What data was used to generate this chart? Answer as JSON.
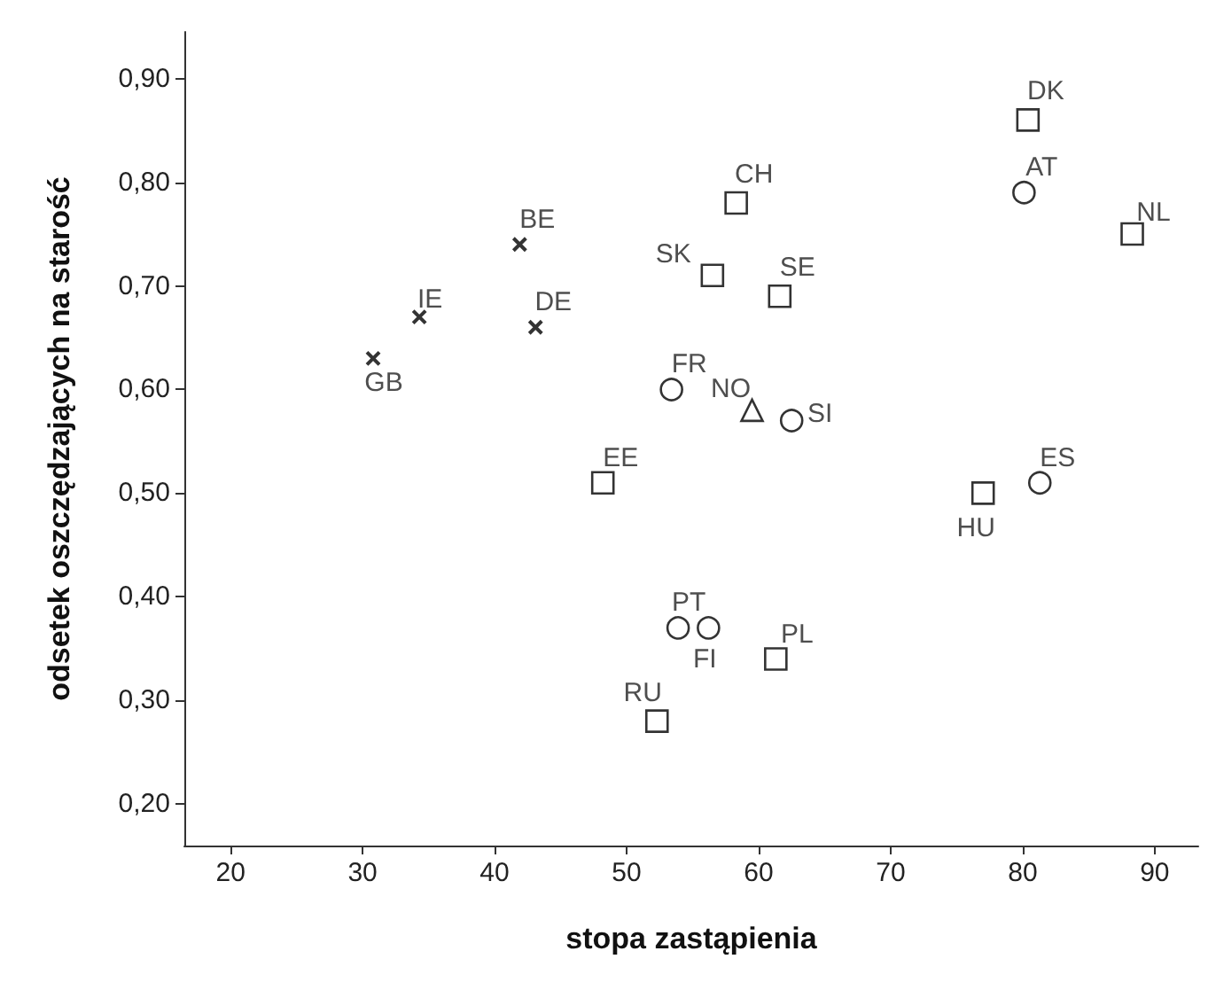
{
  "chart_data": {
    "type": "scatter",
    "xlabel": "stopa zastąpienia",
    "ylabel": "odsetek oszczędzających na starość",
    "xlim": [
      16.5,
      93.3
    ],
    "xticks": [
      20,
      30,
      40,
      50,
      60,
      70,
      80,
      90
    ],
    "ylim": [
      0.16,
      0.945
    ],
    "yticks": [
      {
        "value": 0.2,
        "label": "0,20"
      },
      {
        "value": 0.3,
        "label": "0,30"
      },
      {
        "value": 0.4,
        "label": "0,40"
      },
      {
        "value": 0.5,
        "label": "0,50"
      },
      {
        "value": 0.6,
        "label": "0,60"
      },
      {
        "value": 0.7,
        "label": "0,70"
      },
      {
        "value": 0.8,
        "label": "0,80"
      },
      {
        "value": 0.9,
        "label": "0,90"
      }
    ],
    "grid": false,
    "series": [
      {
        "color": "#000000",
        "marker": "cross",
        "x": [
          30.8,
          34.3,
          41.9,
          43.1
        ],
        "values": [
          0.63,
          0.67,
          0.74,
          0.66
        ],
        "value_labels": [
          "GB",
          "IE",
          "BE",
          "DE"
        ]
      },
      {
        "color": "#000000",
        "marker": "square",
        "x": [
          58.3,
          56.5,
          61.6,
          48.2,
          80.4,
          88.3,
          77.0,
          61.3,
          52.3
        ],
        "values": [
          0.78,
          0.71,
          0.69,
          0.51,
          0.86,
          0.75,
          0.5,
          0.34,
          0.28
        ],
        "value_labels": [
          "CH",
          "SK",
          "SE",
          "EE",
          "DK",
          "NL",
          "HU",
          "PL",
          "RU"
        ]
      },
      {
        "color": "#000000",
        "marker": "circle",
        "x": [
          53.4,
          62.5,
          80.1,
          81.3,
          53.9,
          56.2
        ],
        "values": [
          0.6,
          0.57,
          0.79,
          0.51,
          0.37,
          0.37
        ],
        "value_labels": [
          "FR",
          "SI",
          "AT",
          "ES",
          "PT",
          "FI"
        ]
      },
      {
        "color": "#000000",
        "marker": "triangle",
        "x": [
          59.5
        ],
        "values": [
          0.58
        ],
        "value_labels": [
          "NO"
        ]
      }
    ]
  }
}
